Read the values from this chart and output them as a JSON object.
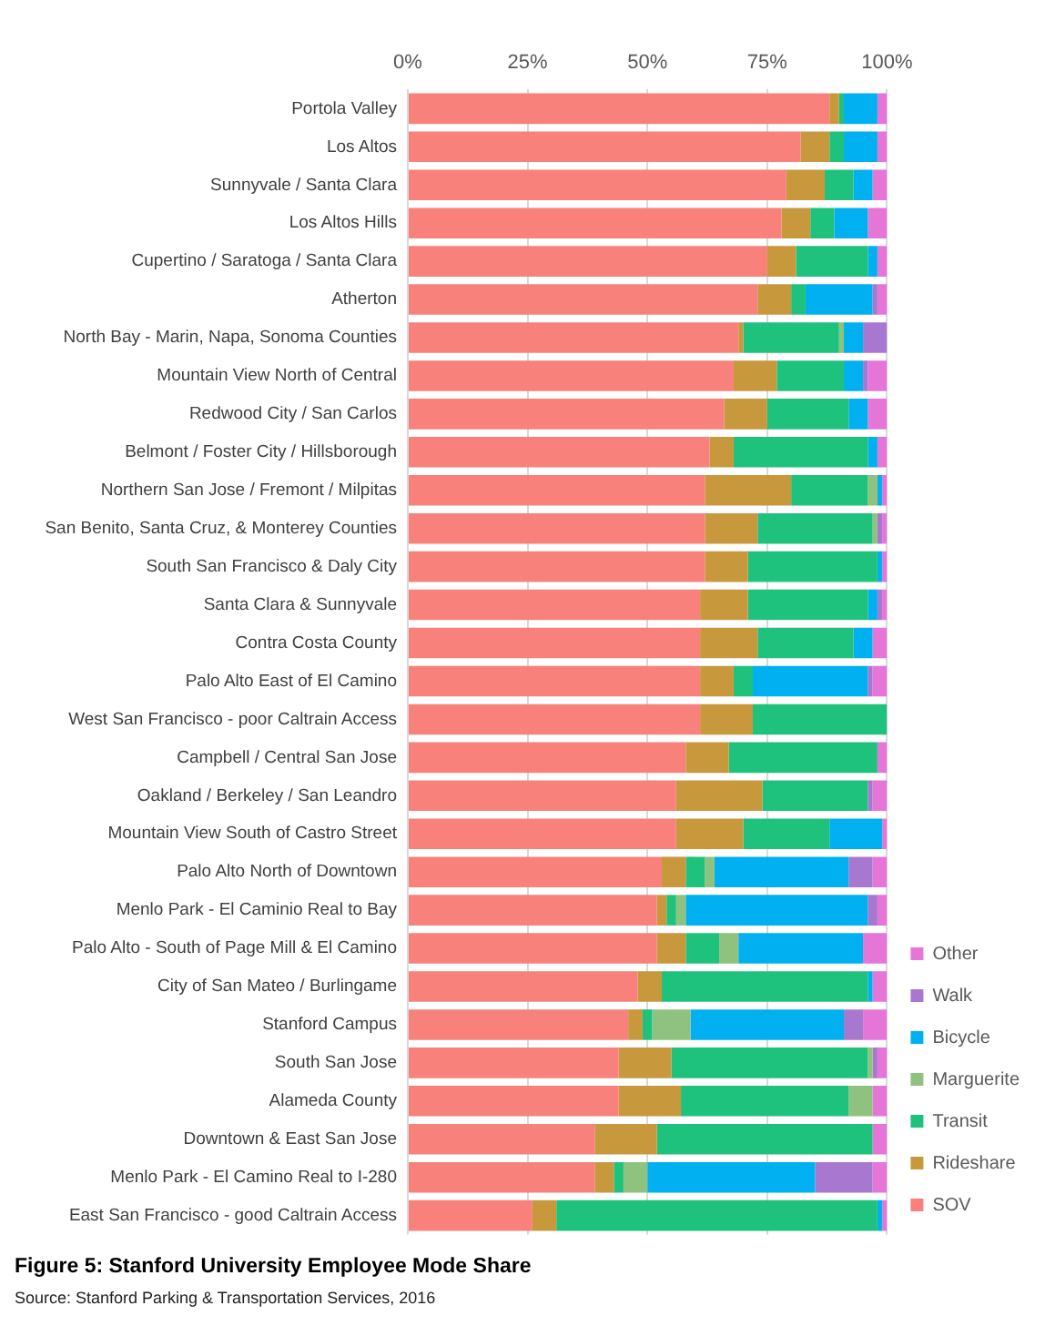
{
  "chart_data": {
    "type": "bar",
    "orientation": "horizontal",
    "stacked": true,
    "title": "Figure 5: Stanford University Employee Mode Share",
    "annotations": [
      "Source: Stanford Parking & Transportation Services, 2016"
    ],
    "categories": [
      "Portola Valley",
      "Los Altos",
      "Sunnyvale / Santa Clara",
      "Los Altos Hills",
      "Cupertino / Saratoga / Santa Clara",
      "Atherton",
      "North Bay - Marin, Napa, Sonoma Counties",
      "Mountain View North of Central",
      "Redwood City / San Carlos",
      "Belmont / Foster City / Hillsborough",
      "Northern San Jose / Fremont / Milpitas",
      "San Benito, Santa Cruz, & Monterey Counties",
      "South San Francisco & Daly City",
      "Santa Clara & Sunnyvale",
      "Contra Costa County",
      "Palo Alto East of El Camino",
      "West San Francisco - poor Caltrain Access",
      "Campbell / Central San Jose",
      "Oakland / Berkeley / San Leandro",
      "Mountain View South of Castro Street",
      "Palo Alto North of Downtown",
      "Menlo Park - El Caminio Real to Bay",
      "Palo Alto - South of Page Mill & El Camino",
      "City of San Mateo / Burlingame",
      "Stanford Campus",
      "South San Jose",
      "Alameda County",
      "Downtown & East San Jose",
      "Menlo Park - El Camino Real to I-280",
      "East San Francisco - good Caltrain Access"
    ],
    "series": [
      {
        "name": "SOV",
        "color": "#f8817b",
        "values": [
          88,
          82,
          79,
          78,
          75,
          73,
          69,
          68,
          66,
          63,
          62,
          62,
          62,
          61,
          61,
          61,
          61,
          58,
          56,
          56,
          53,
          52,
          52,
          48,
          46,
          44,
          44,
          39,
          39,
          26
        ]
      },
      {
        "name": "Rideshare",
        "color": "#c7993c",
        "values": [
          2,
          6,
          8,
          6,
          6,
          7,
          1,
          9,
          9,
          5,
          18,
          11,
          9,
          10,
          12,
          7,
          11,
          9,
          18,
          14,
          5,
          2,
          6,
          5,
          3,
          11,
          13,
          13,
          4,
          5
        ]
      },
      {
        "name": "Transit",
        "color": "#1ec27c",
        "values": [
          1,
          3,
          6,
          5,
          15,
          3,
          20,
          14,
          17,
          28,
          16,
          24,
          27,
          25,
          20,
          4,
          28,
          31,
          22,
          18,
          4,
          2,
          7,
          43,
          2,
          41,
          35,
          45,
          2,
          67
        ]
      },
      {
        "name": "Marguerite",
        "color": "#8fc17f",
        "values": [
          0,
          0,
          0,
          0,
          0,
          0,
          1,
          0,
          0,
          0,
          2,
          1,
          0,
          0,
          0,
          0,
          0,
          0,
          0,
          0,
          2,
          2,
          4,
          0,
          8,
          1,
          5,
          0,
          5,
          0
        ]
      },
      {
        "name": "Bicycle",
        "color": "#00b0f0",
        "values": [
          7,
          7,
          4,
          7,
          2,
          14,
          4,
          4,
          4,
          2,
          1,
          0,
          1,
          2,
          4,
          24,
          0,
          0,
          0,
          11,
          28,
          38,
          26,
          1,
          32,
          0,
          0,
          0,
          35,
          1
        ]
      },
      {
        "name": "Walk",
        "color": "#a878d0",
        "values": [
          0,
          0,
          0,
          0,
          0,
          1,
          5,
          1,
          0,
          0,
          0,
          1,
          0,
          1,
          0,
          1,
          0,
          0,
          1,
          0,
          5,
          2,
          0,
          0,
          4,
          1,
          0,
          0,
          12,
          0
        ]
      },
      {
        "name": "Other",
        "color": "#e576d8",
        "values": [
          2,
          2,
          3,
          4,
          2,
          2,
          0,
          4,
          4,
          2,
          1,
          1,
          1,
          1,
          3,
          3,
          0,
          2,
          3,
          1,
          3,
          2,
          5,
          3,
          5,
          2,
          3,
          3,
          3,
          1
        ]
      }
    ],
    "xlim": [
      0,
      100
    ],
    "xticks": [
      {
        "value": 0,
        "label": "0%"
      },
      {
        "value": 25,
        "label": "25%"
      },
      {
        "value": 50,
        "label": "50%"
      },
      {
        "value": 75,
        "label": "75%"
      },
      {
        "value": 100,
        "label": "100%"
      }
    ],
    "grid": "x",
    "legend": "bottom right"
  }
}
